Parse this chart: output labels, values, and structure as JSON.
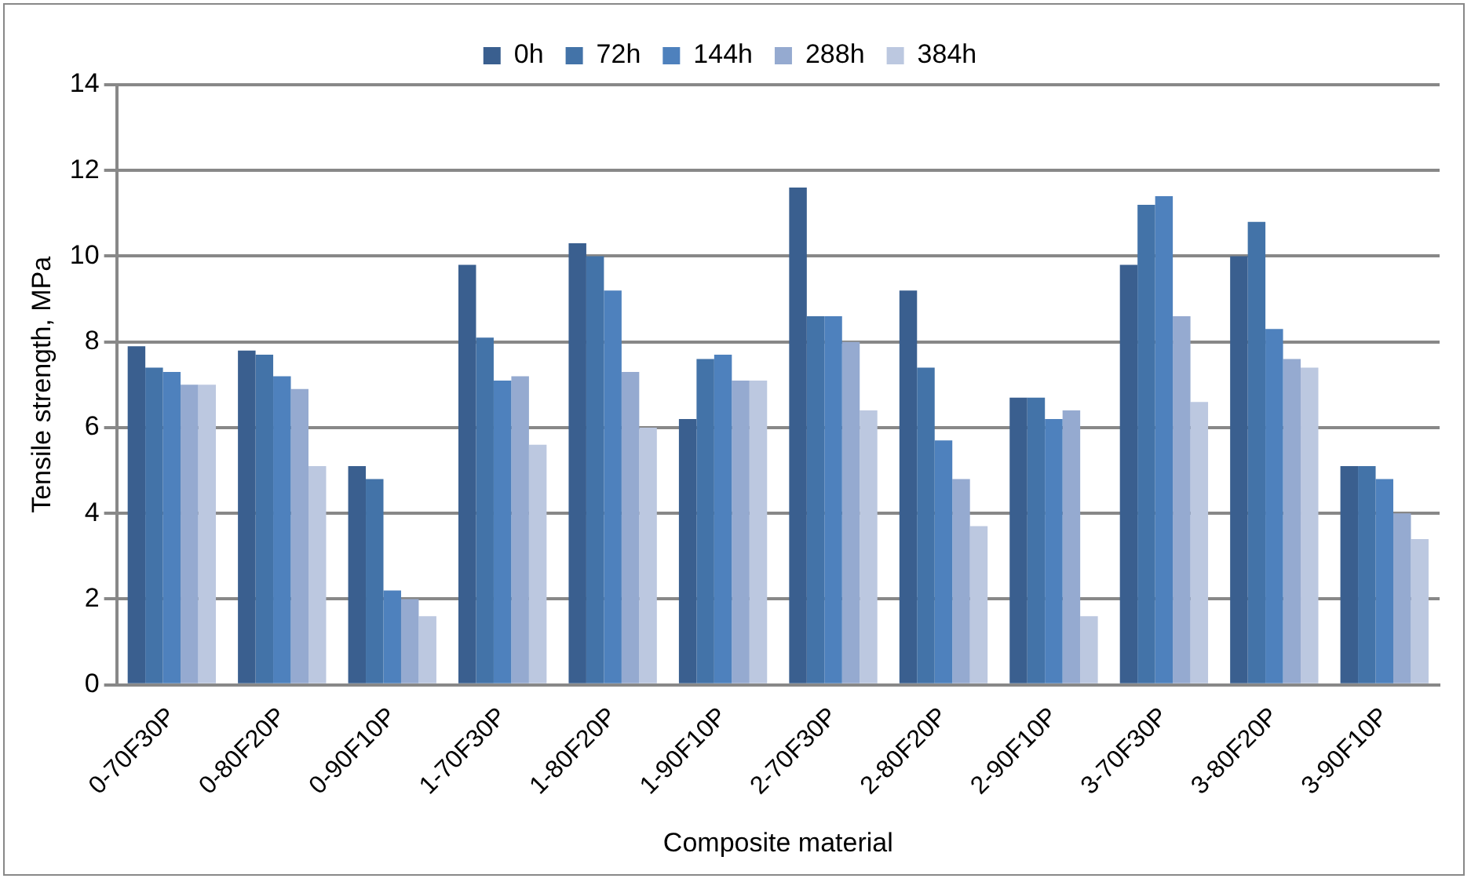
{
  "chart_data": {
    "type": "bar",
    "xlabel": "Composite material",
    "ylabel": "Tensile strength, MPa",
    "categories": [
      "0-70F30P",
      "0-80F20P",
      "0-90F10P",
      "1-70F30P",
      "1-80F20P",
      "1-90F10P",
      "2-70F30P",
      "2-80F20P",
      "2-90F10P",
      "3-70F30P",
      "3-80F20P",
      "3-90F10P"
    ],
    "series": [
      {
        "name": "0h",
        "color": "#3a5f8f",
        "values": [
          7.9,
          7.8,
          5.1,
          9.8,
          10.3,
          6.2,
          11.6,
          9.2,
          6.7,
          9.8,
          10.0,
          5.1
        ]
      },
      {
        "name": "72h",
        "color": "#4373a8",
        "values": [
          7.4,
          7.7,
          4.8,
          8.1,
          10.0,
          7.6,
          8.6,
          7.4,
          6.7,
          11.2,
          10.8,
          5.1
        ]
      },
      {
        "name": "144h",
        "color": "#4e81bd",
        "values": [
          7.3,
          7.2,
          2.2,
          7.1,
          9.2,
          7.7,
          8.6,
          5.7,
          6.2,
          11.4,
          8.3,
          4.8
        ]
      },
      {
        "name": "288h",
        "color": "#95aad0",
        "values": [
          7.0,
          6.9,
          2.0,
          7.2,
          7.3,
          7.1,
          8.0,
          4.8,
          6.4,
          8.6,
          7.6,
          4.0
        ]
      },
      {
        "name": "384h",
        "color": "#bcc8e0",
        "values": [
          7.0,
          5.1,
          1.6,
          5.6,
          6.0,
          7.1,
          6.4,
          3.7,
          1.6,
          6.6,
          7.4,
          3.4
        ]
      }
    ],
    "ylim": [
      0,
      14
    ],
    "yticks": [
      0,
      2,
      4,
      6,
      8,
      10,
      12,
      14
    ],
    "grid": "y",
    "legend": "top"
  }
}
